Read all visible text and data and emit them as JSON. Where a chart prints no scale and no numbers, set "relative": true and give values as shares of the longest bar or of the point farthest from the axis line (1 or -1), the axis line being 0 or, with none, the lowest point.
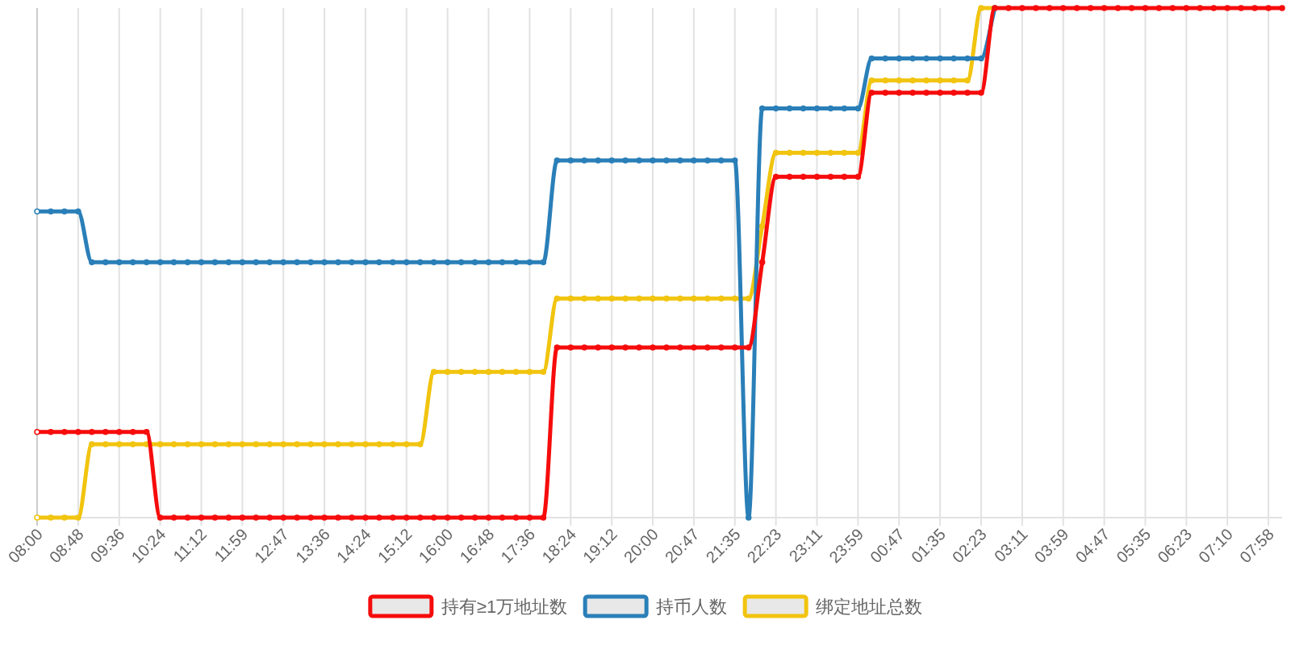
{
  "chart_data": {
    "type": "line",
    "relative": true,
    "grid": "x",
    "legend": "bottom",
    "marker": "circle",
    "line_style": "solid",
    "categories": [
      "08:00",
      null,
      null,
      "08:48",
      null,
      null,
      "09:36",
      null,
      null,
      "10:24",
      null,
      null,
      "11:12",
      null,
      null,
      "11:59",
      null,
      null,
      "12:47",
      null,
      null,
      "13:36",
      null,
      null,
      "14:24",
      null,
      null,
      "15:12",
      null,
      null,
      "16:00",
      null,
      null,
      "16:48",
      null,
      null,
      "17:36",
      null,
      null,
      "18:24",
      null,
      null,
      "19:12",
      null,
      null,
      "20:00",
      null,
      null,
      "20:47",
      null,
      null,
      "21:35",
      null,
      null,
      "22:23",
      null,
      null,
      "23:11",
      null,
      null,
      "23:59",
      null,
      null,
      "00:47",
      null,
      null,
      "01:35",
      null,
      null,
      "02:23",
      null,
      null,
      "03:11",
      null,
      null,
      "03:59",
      null,
      null,
      "04:47",
      null,
      null,
      "05:35",
      null,
      null,
      "06:23",
      null,
      null,
      "07:10",
      null,
      null,
      "07:58",
      null
    ],
    "series": [
      {
        "name": "持有≥1万地址数",
        "color": "#f60c0c",
        "values": [
          0.168,
          0.168,
          0.168,
          0.168,
          0.168,
          0.168,
          0.168,
          0.168,
          0.168,
          0,
          0,
          0,
          0,
          0,
          0,
          0,
          0,
          0,
          0,
          0,
          0,
          0,
          0,
          0,
          0,
          0,
          0,
          0,
          0,
          0,
          0,
          0,
          0,
          0,
          0,
          0,
          0,
          0,
          0.334,
          0.334,
          0.334,
          0.334,
          0.334,
          0.334,
          0.334,
          0.334,
          0.334,
          0.334,
          0.334,
          0.334,
          0.334,
          0.334,
          0.334,
          0.501,
          0.669,
          0.669,
          0.669,
          0.669,
          0.669,
          0.669,
          0.669,
          0.834,
          0.834,
          0.834,
          0.834,
          0.834,
          0.834,
          0.834,
          0.834,
          0.834,
          1,
          1,
          1,
          1,
          1,
          1,
          1,
          1,
          1,
          1,
          1,
          1,
          1,
          1,
          1,
          1,
          1,
          1,
          1,
          1,
          1,
          1
        ]
      },
      {
        "name": "持币人数",
        "color": "#2a7fb8",
        "values": [
          0.601,
          0.601,
          0.601,
          0.601,
          0.501,
          0.501,
          0.501,
          0.501,
          0.501,
          0.501,
          0.501,
          0.501,
          0.501,
          0.501,
          0.501,
          0.501,
          0.501,
          0.501,
          0.501,
          0.501,
          0.501,
          0.501,
          0.501,
          0.501,
          0.501,
          0.501,
          0.501,
          0.501,
          0.501,
          0.501,
          0.501,
          0.501,
          0.501,
          0.501,
          0.501,
          0.501,
          0.501,
          0.501,
          0.701,
          0.701,
          0.701,
          0.701,
          0.701,
          0.701,
          0.701,
          0.701,
          0.701,
          0.701,
          0.701,
          0.701,
          0.701,
          0.701,
          0,
          0.803,
          0.803,
          0.803,
          0.803,
          0.803,
          0.803,
          0.803,
          0.803,
          0.901,
          0.901,
          0.901,
          0.901,
          0.901,
          0.901,
          0.901,
          0.901,
          0.901,
          1,
          null,
          null,
          null,
          null,
          null,
          null,
          null,
          null,
          null,
          null,
          null,
          null,
          null,
          null,
          null,
          null,
          null,
          null,
          null,
          null,
          null
        ]
      },
      {
        "name": "绑定地址总数",
        "color": "#f1c40f",
        "values": [
          0,
          0,
          0,
          0,
          0.144,
          0.144,
          0.144,
          0.144,
          0.144,
          0.144,
          0.144,
          0.144,
          0.144,
          0.144,
          0.144,
          0.144,
          0.144,
          0.144,
          0.144,
          0.144,
          0.144,
          0.144,
          0.144,
          0.144,
          0.144,
          0.144,
          0.144,
          0.144,
          0.144,
          0.286,
          0.286,
          0.286,
          0.286,
          0.286,
          0.286,
          0.286,
          0.286,
          0.286,
          0.43,
          0.43,
          0.43,
          0.43,
          0.43,
          0.43,
          0.43,
          0.43,
          0.43,
          0.43,
          0.43,
          0.43,
          0.43,
          0.43,
          0.43,
          0.572,
          0.716,
          0.716,
          0.716,
          0.716,
          0.716,
          0.716,
          0.716,
          0.858,
          0.858,
          0.858,
          0.858,
          0.858,
          0.858,
          0.858,
          0.858,
          1,
          1,
          null,
          null,
          null,
          null,
          null,
          null,
          null,
          null,
          null,
          null,
          null,
          null,
          null,
          null,
          null,
          null,
          null,
          null,
          null,
          null,
          null
        ]
      }
    ]
  }
}
